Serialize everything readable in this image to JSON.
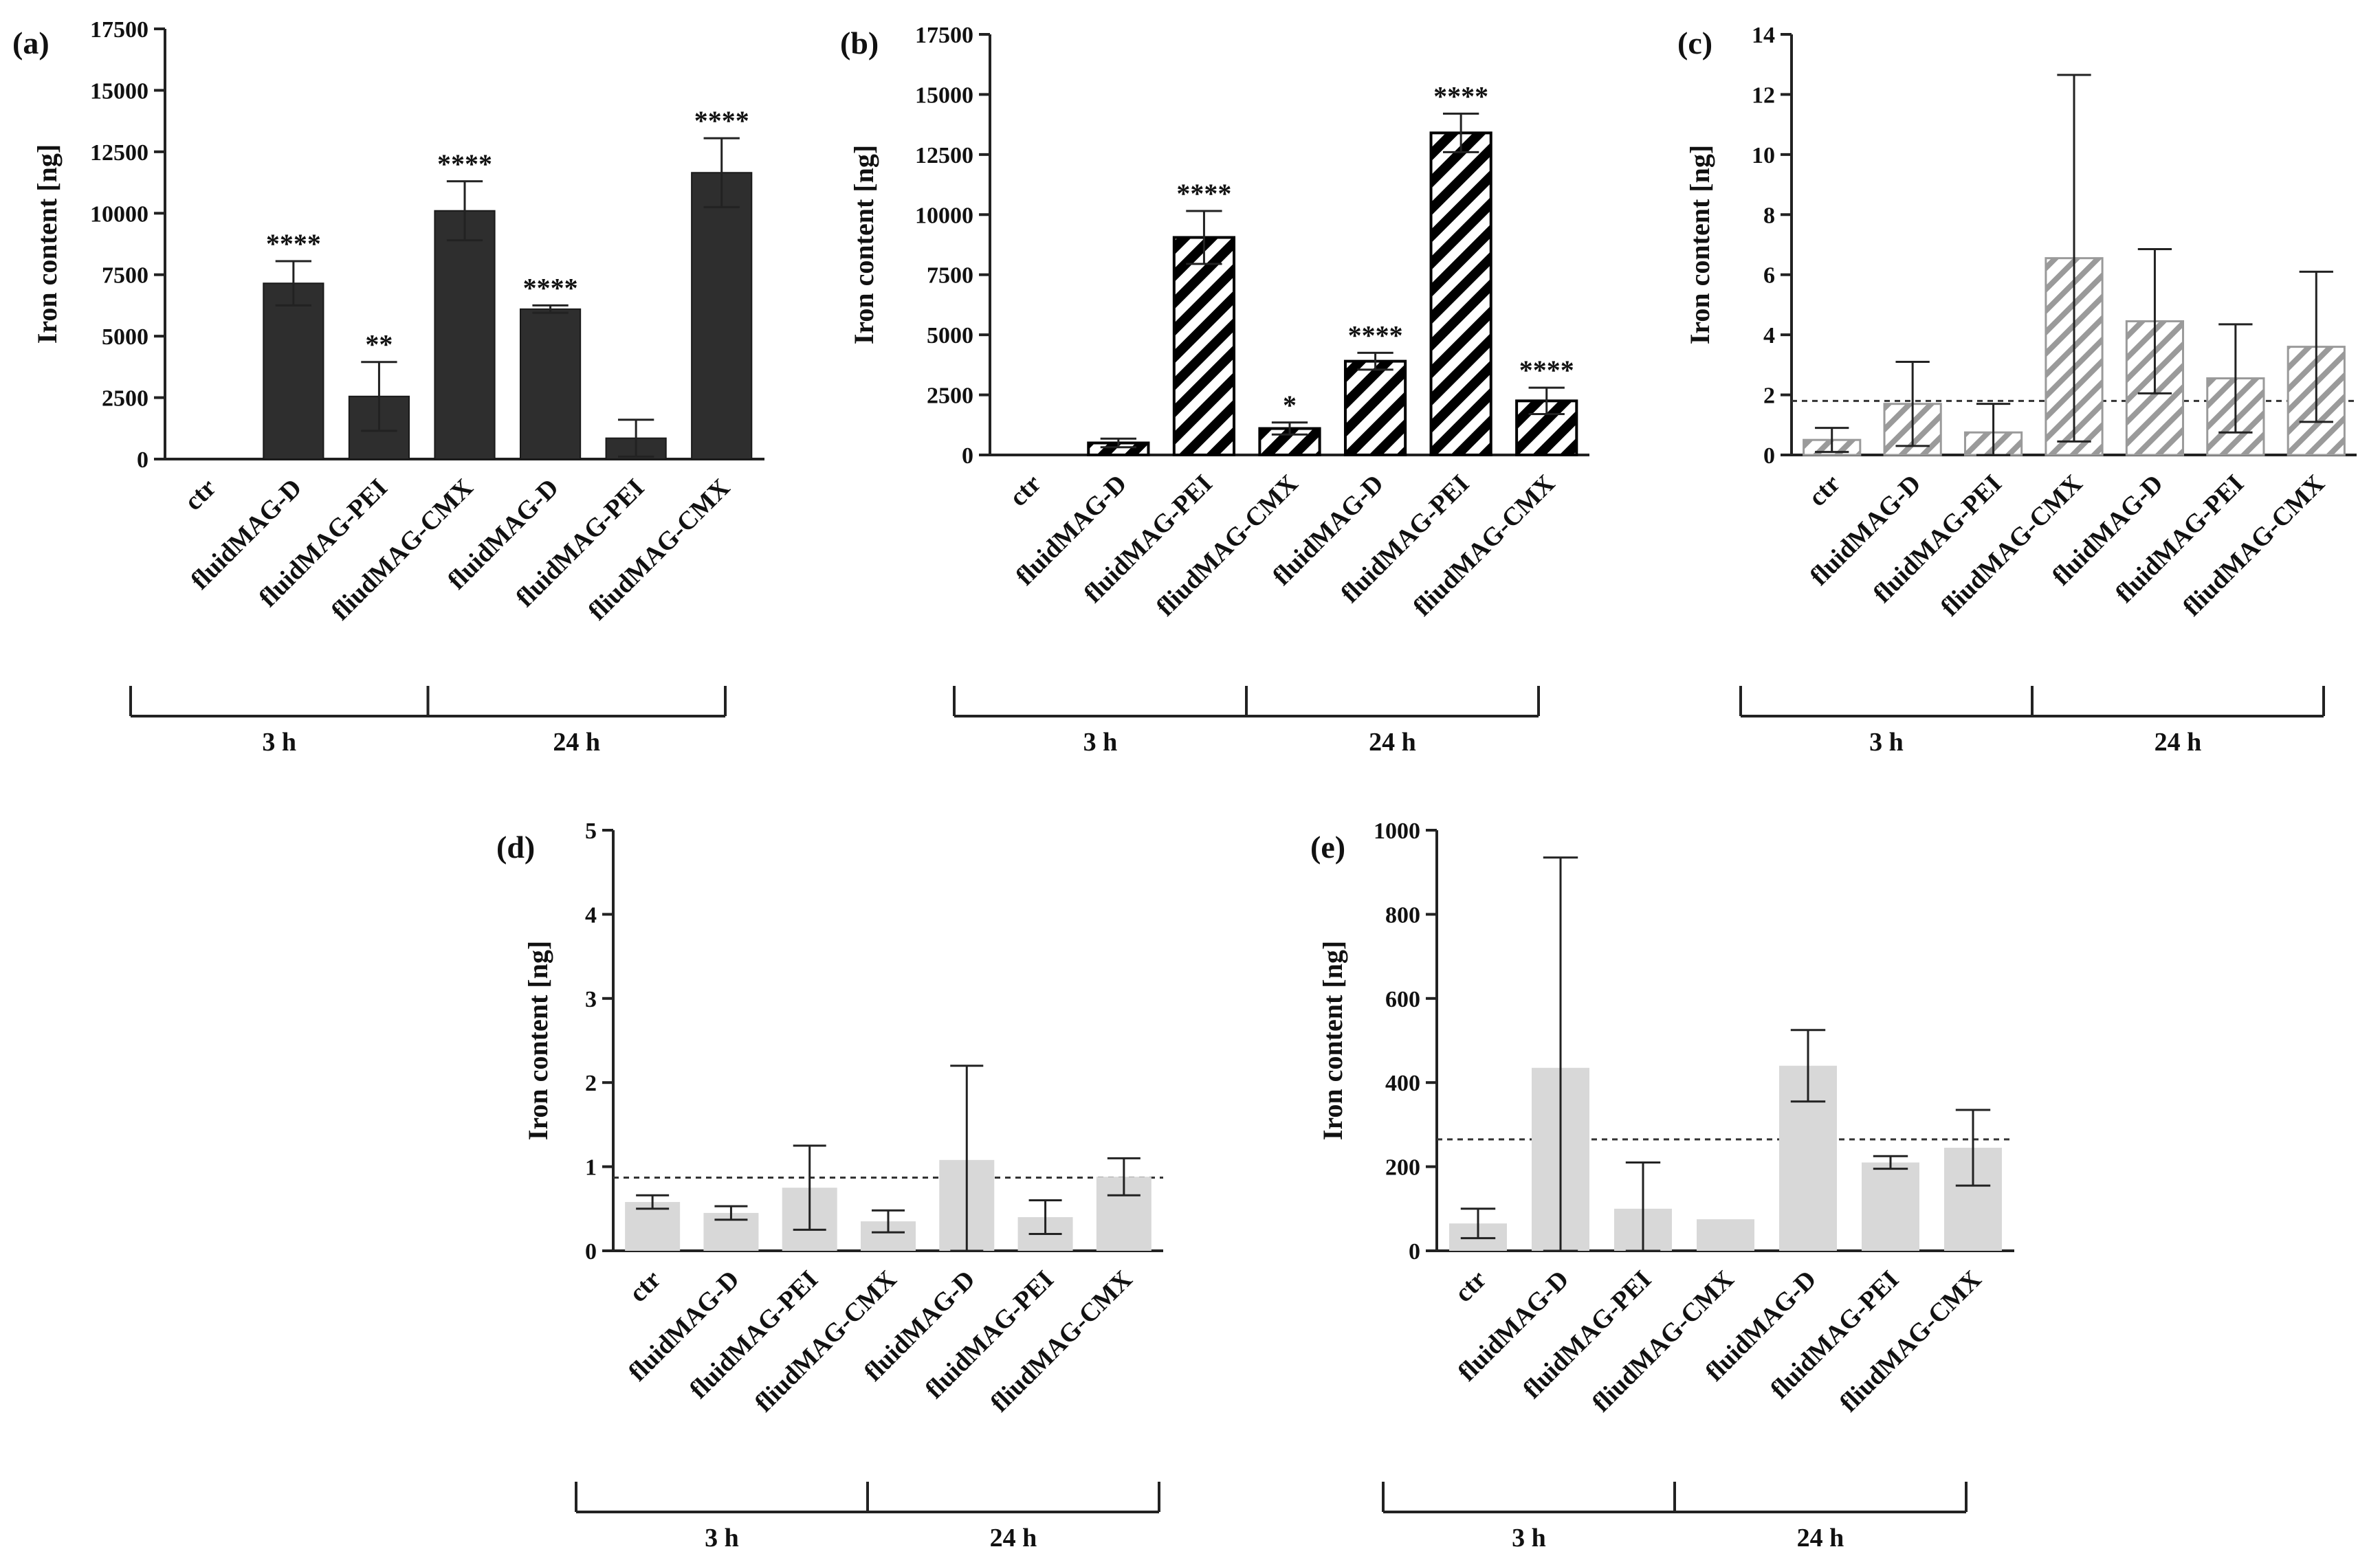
{
  "chart_data": [
    {
      "panel": "(a)",
      "type": "bar",
      "ylabel": "Iron content [ng]",
      "ylim": [
        0,
        17500
      ],
      "yticks": [
        0,
        2500,
        5000,
        7500,
        10000,
        12500,
        15000,
        17500
      ],
      "categories": [
        "ctr",
        "fluidMAG-D",
        "fluidMAG-PEI",
        "fliudMAG-CMX",
        "fluidMAG-D",
        "fluidMAG-PEI",
        "fliudMAG-CMX"
      ],
      "values": [
        0,
        7150,
        2550,
        10100,
        6100,
        850,
        11650
      ],
      "errors": [
        0,
        900,
        1400,
        1200,
        150,
        750,
        1400
      ],
      "significance": [
        "",
        "****",
        "**",
        "****",
        "****",
        "",
        "****"
      ],
      "groups": [
        {
          "label": "3 h",
          "from": 0,
          "to": 3
        },
        {
          "label": "24 h",
          "from": 4,
          "to": 6
        }
      ],
      "bar_style": "dark-solid",
      "bar_color": "#2e2e2e",
      "threshold": null
    },
    {
      "panel": "(b)",
      "type": "bar",
      "ylabel": "Iron content [ng]",
      "ylim": [
        0,
        17500
      ],
      "yticks": [
        0,
        2500,
        5000,
        7500,
        10000,
        12500,
        15000,
        17500
      ],
      "categories": [
        "ctr",
        "fluidMAG-D",
        "fluidMAG-PEI",
        "fliudMAG-CMX",
        "fluidMAG-D",
        "fluidMAG-PEI",
        "fliudMAG-CMX"
      ],
      "values": [
        0,
        500,
        9050,
        1100,
        3900,
        13400,
        2250
      ],
      "errors": [
        0,
        180,
        1100,
        250,
        350,
        800,
        550
      ],
      "significance": [
        "",
        "",
        "****",
        "*",
        "****",
        "****",
        "****"
      ],
      "groups": [
        {
          "label": "3 h",
          "from": 0,
          "to": 3
        },
        {
          "label": "24 h",
          "from": 4,
          "to": 6
        }
      ],
      "bar_style": "black-hatch",
      "bar_color": "#000000",
      "threshold": null
    },
    {
      "panel": "(c)",
      "type": "bar",
      "ylabel": "Iron content [ng]",
      "ylim": [
        0,
        14
      ],
      "yticks": [
        0,
        2,
        4,
        6,
        8,
        10,
        12,
        14
      ],
      "categories": [
        "ctr",
        "fluidMAG-D",
        "fluidMAG-PEI",
        "fliudMAG-CMX",
        "fluidMAG-D",
        "fluidMAG-PEI",
        "fliudMAG-CMX"
      ],
      "values": [
        0.5,
        1.7,
        0.75,
        6.55,
        4.45,
        2.55,
        3.6
      ],
      "errors": [
        0.4,
        1.4,
        0.95,
        6.1,
        2.4,
        1.8,
        2.5
      ],
      "significance": [
        "",
        "",
        "",
        "",
        "",
        "",
        ""
      ],
      "groups": [
        {
          "label": "3 h",
          "from": 0,
          "to": 3
        },
        {
          "label": "24 h",
          "from": 4,
          "to": 6
        }
      ],
      "bar_style": "gray-hatch",
      "bar_color": "#9a9a9a",
      "threshold": 1.8
    },
    {
      "panel": "(d)",
      "type": "bar",
      "ylabel": "Iron content [ng]",
      "ylim": [
        0,
        5
      ],
      "yticks": [
        0,
        1,
        2,
        3,
        4,
        5
      ],
      "categories": [
        "ctr",
        "fluidMAG-D",
        "fluidMAG-PEI",
        "fliudMAG-CMX",
        "fluidMAG-D",
        "fluidMAG-PEI",
        "fliudMAG-CMX"
      ],
      "values": [
        0.58,
        0.45,
        0.75,
        0.35,
        1.08,
        0.4,
        0.88
      ],
      "errors": [
        0.08,
        0.08,
        0.5,
        0.13,
        1.12,
        0.2,
        0.22
      ],
      "significance": [
        "",
        "",
        "",
        "",
        "",
        "",
        ""
      ],
      "groups": [
        {
          "label": "3 h",
          "from": 0,
          "to": 3
        },
        {
          "label": "24 h",
          "from": 4,
          "to": 6
        }
      ],
      "bar_style": "light-solid",
      "bar_color": "#d8d8d8",
      "threshold": 0.87
    },
    {
      "panel": "(e)",
      "type": "bar",
      "ylabel": "Iron content [ng]",
      "ylim": [
        0,
        1000
      ],
      "yticks": [
        0,
        200,
        400,
        600,
        800,
        1000
      ],
      "categories": [
        "ctr",
        "fluidMAG-D",
        "fluidMAG-PEI",
        "fliudMAG-CMX",
        "fluidMAG-D",
        "fluidMAG-PEI",
        "fliudMAG-CMX"
      ],
      "values": [
        65,
        435,
        100,
        75,
        440,
        210,
        245
      ],
      "errors": [
        35,
        500,
        110,
        0,
        85,
        15,
        90
      ],
      "significance": [
        "",
        "",
        "",
        "",
        "",
        "",
        ""
      ],
      "groups": [
        {
          "label": "3 h",
          "from": 0,
          "to": 3
        },
        {
          "label": "24 h",
          "from": 4,
          "to": 6
        }
      ],
      "bar_style": "light-solid",
      "bar_color": "#d8d8d8",
      "threshold": 265
    }
  ]
}
